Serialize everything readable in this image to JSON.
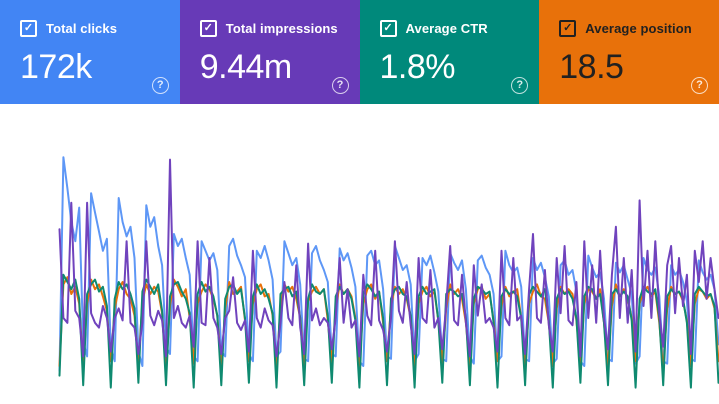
{
  "cards": [
    {
      "label": "Total clicks",
      "value": "172k",
      "color": "#4285f4",
      "text_color": "#ffffff",
      "checked": true
    },
    {
      "label": "Total impressions",
      "value": "9.44m",
      "color": "#673ab7",
      "text_color": "#ffffff",
      "checked": true
    },
    {
      "label": "Average CTR",
      "value": "1.8%",
      "color": "#00897b",
      "text_color": "#ffffff",
      "checked": true
    },
    {
      "label": "Average position",
      "value": "18.5",
      "color": "#e8710a",
      "text_color": "#212121",
      "checked": true
    }
  ],
  "glyphs": {
    "checkbox_check": "✓",
    "help": "?"
  },
  "chart_data": {
    "type": "line",
    "x_unit": "day",
    "num_points": 168,
    "title": "",
    "xlabel": "",
    "ylabel": "",
    "ylim": [
      0,
      100
    ],
    "grid": false,
    "legend_position": "none",
    "axes_visible": false,
    "draw_order": [
      0,
      3,
      2,
      1
    ],
    "series": [
      {
        "name": "Total clicks",
        "slug": "clicks",
        "color": "#5e97f6",
        "values": [
          8,
          97,
          84,
          70,
          62,
          76,
          20,
          14,
          82,
          74,
          66,
          58,
          63,
          18,
          12,
          80,
          70,
          64,
          68,
          55,
          16,
          10,
          77,
          68,
          72,
          60,
          52,
          18,
          15,
          65,
          60,
          63,
          55,
          48,
          14,
          12,
          62,
          58,
          54,
          57,
          50,
          16,
          14,
          60,
          63,
          56,
          52,
          47,
          15,
          12,
          58,
          55,
          60,
          54,
          46,
          14,
          16,
          62,
          57,
          52,
          55,
          44,
          13,
          12,
          57,
          60,
          54,
          50,
          45,
          15,
          14,
          59,
          54,
          57,
          51,
          43,
          12,
          10,
          56,
          58,
          52,
          54,
          42,
          14,
          13,
          60,
          55,
          50,
          52,
          44,
          12,
          15,
          55,
          52,
          56,
          49,
          41,
          13,
          12,
          57,
          53,
          50,
          54,
          42,
          14,
          11,
          54,
          56,
          51,
          48,
          40,
          12,
          14,
          58,
          52,
          49,
          51,
          43,
          13,
          12,
          55,
          50,
          53,
          47,
          39,
          11,
          13,
          52,
          54,
          48,
          50,
          41,
          12,
          10,
          56,
          51,
          47,
          49,
          38,
          13,
          12,
          53,
          49,
          52,
          46,
          40,
          11,
          14,
          55,
          50,
          48,
          51,
          39,
          12,
          11,
          52,
          48,
          50,
          45,
          37,
          13,
          12,
          54,
          49,
          46,
          48,
          42,
          19
        ]
      },
      {
        "name": "Total impressions",
        "slug": "impressions",
        "color": "#7043bd",
        "values": [
          67,
          30,
          28,
          78,
          33,
          30,
          14,
          78,
          32,
          28,
          26,
          35,
          30,
          16,
          30,
          34,
          29,
          62,
          28,
          26,
          15,
          28,
          62,
          31,
          27,
          33,
          29,
          14,
          96,
          30,
          35,
          28,
          26,
          31,
          18,
          62,
          28,
          27,
          55,
          30,
          26,
          15,
          30,
          33,
          47,
          28,
          25,
          29,
          16,
          58,
          30,
          26,
          34,
          29,
          27,
          14,
          28,
          45,
          30,
          27,
          52,
          26,
          15,
          61,
          29,
          34,
          27,
          30,
          28,
          17,
          30,
          55,
          28,
          42,
          26,
          29,
          14,
          48,
          31,
          27,
          58,
          29,
          25,
          16,
          30,
          62,
          33,
          28,
          45,
          27,
          15,
          55,
          30,
          28,
          50,
          26,
          30,
          17,
          35,
          60,
          29,
          27,
          48,
          28,
          14,
          52,
          31,
          44,
          28,
          30,
          26,
          16,
          58,
          30,
          27,
          55,
          29,
          31,
          15,
          42,
          65,
          30,
          28,
          50,
          27,
          16,
          55,
          32,
          60,
          29,
          27,
          45,
          14,
          62,
          30,
          52,
          28,
          58,
          30,
          17,
          48,
          68,
          30,
          55,
          28,
          50,
          16,
          79,
          35,
          58,
          30,
          62,
          32,
          18,
          52,
          60,
          32,
          55,
          35,
          48,
          15,
          58,
          45,
          62,
          38,
          55,
          42,
          30
        ]
      },
      {
        "name": "Average CTR",
        "slug": "ctr",
        "color": "#0f8a70",
        "values": [
          6,
          48,
          45,
          42,
          46,
          38,
          2,
          40,
          44,
          46,
          41,
          43,
          35,
          1,
          38,
          45,
          42,
          44,
          40,
          34,
          3,
          41,
          46,
          43,
          40,
          44,
          33,
          2,
          39,
          44,
          45,
          41,
          38,
          32,
          1,
          40,
          45,
          41,
          43,
          39,
          31,
          2,
          38,
          43,
          44,
          40,
          42,
          30,
          3,
          39,
          44,
          40,
          42,
          38,
          32,
          1,
          40,
          42,
          43,
          39,
          41,
          30,
          2,
          38,
          44,
          41,
          40,
          42,
          31,
          3,
          39,
          43,
          40,
          42,
          38,
          29,
          1,
          40,
          44,
          42,
          39,
          41,
          30,
          2,
          38,
          42,
          43,
          40,
          39,
          31,
          1,
          39,
          43,
          40,
          41,
          42,
          29,
          3,
          40,
          42,
          41,
          39,
          40,
          30,
          2,
          38,
          43,
          42,
          40,
          41,
          28,
          1,
          39,
          42,
          40,
          41,
          39,
          30,
          2,
          40,
          43,
          41,
          39,
          42,
          29,
          1,
          38,
          42,
          40,
          41,
          38,
          30,
          3,
          39,
          43,
          42,
          38,
          40,
          28,
          2,
          40,
          42,
          39,
          41,
          39,
          29,
          1,
          38,
          43,
          41,
          40,
          42,
          30,
          2,
          39,
          42,
          40,
          41,
          38,
          28,
          1,
          40,
          43,
          41,
          39,
          40,
          35,
          3
        ]
      },
      {
        "name": "Average position",
        "slug": "position",
        "color": "#e8710a",
        "values": [
          10,
          44,
          47,
          40,
          43,
          36,
          9,
          36,
          46,
          42,
          44,
          39,
          33,
          12,
          34,
          42,
          45,
          40,
          38,
          31,
          10,
          37,
          44,
          40,
          43,
          41,
          32,
          8,
          35,
          46,
          43,
          39,
          42,
          30,
          11,
          36,
          41,
          44,
          42,
          38,
          31,
          9,
          34,
          45,
          40,
          41,
          43,
          29,
          12,
          36,
          42,
          44,
          39,
          40,
          31,
          8,
          35,
          44,
          41,
          43,
          38,
          30,
          10,
          37,
          41,
          43,
          40,
          42,
          29,
          11,
          34,
          44,
          40,
          42,
          39,
          30,
          9,
          36,
          42,
          44,
          38,
          41,
          28,
          12,
          35,
          43,
          40,
          42,
          38,
          30,
          8,
          36,
          41,
          43,
          39,
          41,
          29,
          11,
          34,
          44,
          40,
          42,
          38,
          28,
          9,
          36,
          42,
          43,
          38,
          40,
          29,
          12,
          35,
          43,
          39,
          41,
          42,
          30,
          8,
          36,
          41,
          44,
          39,
          38,
          28,
          10,
          34,
          43,
          40,
          42,
          40,
          29,
          11,
          36,
          42,
          41,
          38,
          42,
          28,
          9,
          35,
          44,
          39,
          42,
          38,
          30,
          12,
          36,
          41,
          43,
          39,
          41,
          28,
          8,
          34,
          43,
          40,
          41,
          37,
          29,
          10,
          36,
          42,
          41,
          38,
          40,
          34,
          12
        ]
      }
    ]
  }
}
